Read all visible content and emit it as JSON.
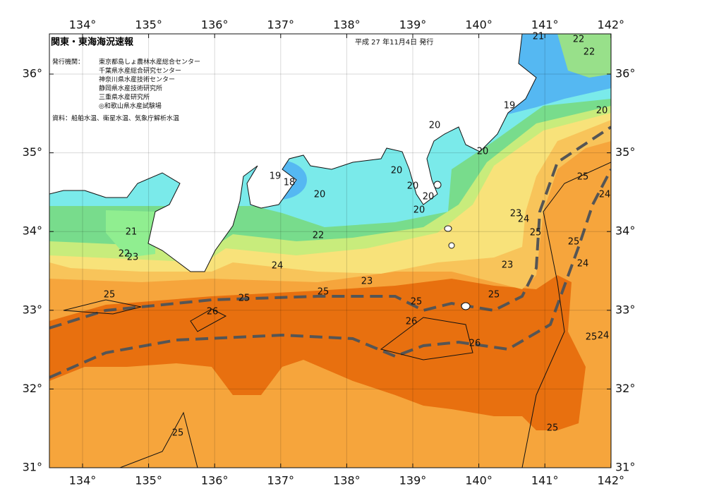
{
  "header": {
    "title": "関東・東海海況速報",
    "date": "平成 27 年11月4日 発行",
    "publisher_label": "発行機関：",
    "publishers": [
      "東京都島しょ農林水産総合センター",
      "千葉県水産総合研究センター",
      "神奈川県水産技術センター",
      "静岡県水産技術研究所",
      "三重県水産研究所",
      "◎和歌山県水産試験場"
    ],
    "sources": "資料：船舶水温、衛星水温、気象庁解析水温"
  },
  "map": {
    "lon_ticks": [
      {
        "value": 134,
        "label": "134°"
      },
      {
        "value": 135,
        "label": "135°"
      },
      {
        "value": 136,
        "label": "136°"
      },
      {
        "value": 137,
        "label": "137°"
      },
      {
        "value": 138,
        "label": "138°"
      },
      {
        "value": 139,
        "label": "139°"
      },
      {
        "value": 140,
        "label": "140°"
      },
      {
        "value": 141,
        "label": "141°"
      },
      {
        "value": 142,
        "label": "142°"
      }
    ],
    "lat_ticks": [
      {
        "value": 31,
        "label": "31°"
      },
      {
        "value": 32,
        "label": "32°"
      },
      {
        "value": 33,
        "label": "33°"
      },
      {
        "value": 34,
        "label": "34°"
      },
      {
        "value": 35,
        "label": "35°"
      },
      {
        "value": 36,
        "label": "36°"
      }
    ],
    "contour_labels": [
      21,
      22,
      22,
      19,
      20,
      20,
      20,
      20,
      19,
      18,
      20,
      20,
      20,
      20,
      25,
      24,
      23,
      24,
      21,
      22,
      25,
      25,
      22,
      23,
      24,
      23,
      24,
      23,
      25,
      25,
      25,
      25,
      25,
      26,
      26,
      26,
      25,
      24,
      25,
      25
    ]
  }
}
